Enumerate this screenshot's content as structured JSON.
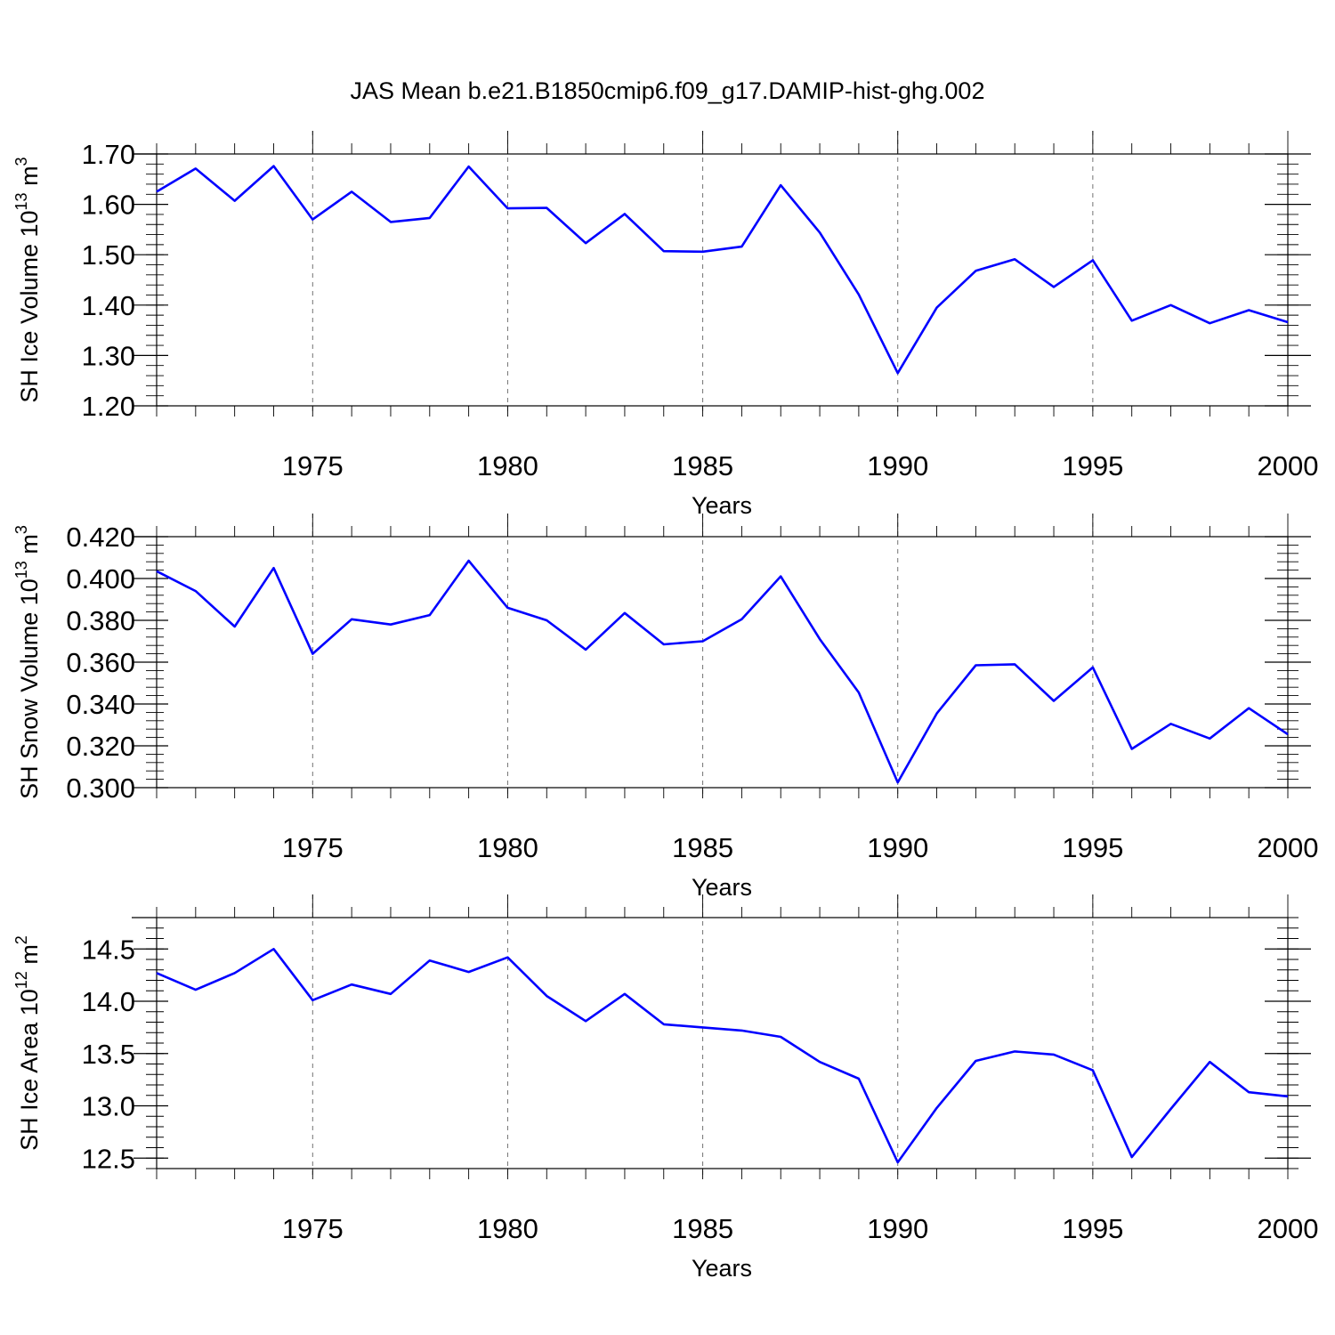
{
  "chart_data": {
    "type": "line",
    "title": "JAS Mean b.e21.B1850cmip6.f09_g17.DAMIP-hist-ghg.002",
    "line_color": "#0000ff",
    "panels": [
      {
        "ylabel": {
          "main": "SH Ice Volume 10",
          "exp": "13",
          "unit": " m",
          "unit_exp": "3"
        },
        "xlabel": "Years",
        "xlim": [
          1971,
          2000
        ],
        "ylim": [
          1.2,
          1.7
        ],
        "yticks": [
          "1.20",
          "1.30",
          "1.40",
          "1.50",
          "1.60",
          "1.70"
        ],
        "xticks": [
          "1975",
          "1980",
          "1985",
          "1990",
          "1995",
          "2000"
        ],
        "x": [
          1971,
          1972,
          1973,
          1974,
          1975,
          1976,
          1977,
          1978,
          1979,
          1980,
          1981,
          1982,
          1983,
          1984,
          1985,
          1986,
          1987,
          1988,
          1989,
          1990,
          1991,
          1992,
          1993,
          1994,
          1995,
          1996,
          1997,
          1998,
          1999,
          2000
        ],
        "values": [
          1.625,
          1.671,
          1.607,
          1.676,
          1.57,
          1.625,
          1.565,
          1.573,
          1.675,
          1.592,
          1.593,
          1.523,
          1.581,
          1.507,
          1.506,
          1.516,
          1.638,
          1.544,
          1.421,
          1.265,
          1.395,
          1.468,
          1.491,
          1.436,
          1.489,
          1.369,
          1.4,
          1.364,
          1.39,
          1.366
        ]
      },
      {
        "ylabel": {
          "main": "SH Snow Volume 10",
          "exp": "13",
          "unit": " m",
          "unit_exp": "3"
        },
        "xlabel": "Years",
        "xlim": [
          1971,
          2000
        ],
        "ylim": [
          0.3,
          0.42
        ],
        "yticks": [
          "0.300",
          "0.320",
          "0.340",
          "0.360",
          "0.380",
          "0.400",
          "0.420"
        ],
        "xticks": [
          "1975",
          "1980",
          "1985",
          "1990",
          "1995",
          "2000"
        ],
        "x": [
          1971,
          1972,
          1973,
          1974,
          1975,
          1976,
          1977,
          1978,
          1979,
          1980,
          1981,
          1982,
          1983,
          1984,
          1985,
          1986,
          1987,
          1988,
          1989,
          1990,
          1991,
          1992,
          1993,
          1994,
          1995,
          1996,
          1997,
          1998,
          1999,
          2000
        ],
        "values": [
          0.4035,
          0.394,
          0.377,
          0.405,
          0.364,
          0.3805,
          0.378,
          0.3825,
          0.4085,
          0.386,
          0.38,
          0.366,
          0.3835,
          0.3685,
          0.37,
          0.3805,
          0.401,
          0.371,
          0.3455,
          0.3025,
          0.3355,
          0.3585,
          0.359,
          0.3415,
          0.3575,
          0.3185,
          0.3305,
          0.3235,
          0.338,
          0.3255
        ]
      },
      {
        "ylabel": {
          "main": "SH Ice Area 10",
          "exp": "12",
          "unit": " m",
          "unit_exp": "2"
        },
        "xlabel": "Years",
        "xlim": [
          1971,
          2000
        ],
        "ylim": [
          12.4,
          14.8
        ],
        "yticks": [
          "12.5",
          "13.0",
          "13.5",
          "14.0",
          "14.5"
        ],
        "xticks": [
          "1975",
          "1980",
          "1985",
          "1990",
          "1995",
          "2000"
        ],
        "x": [
          1971,
          1972,
          1973,
          1974,
          1975,
          1976,
          1977,
          1978,
          1979,
          1980,
          1981,
          1982,
          1983,
          1984,
          1985,
          1986,
          1987,
          1988,
          1989,
          1990,
          1991,
          1992,
          1993,
          1994,
          1995,
          1996,
          1997,
          1998,
          1999,
          2000
        ],
        "values": [
          14.27,
          14.11,
          14.27,
          14.5,
          14.01,
          14.16,
          14.07,
          14.39,
          14.28,
          14.42,
          14.05,
          13.81,
          14.07,
          13.78,
          13.75,
          13.72,
          13.66,
          13.42,
          13.26,
          12.46,
          12.98,
          13.43,
          13.52,
          13.49,
          13.34,
          12.51,
          12.97,
          13.42,
          13.13,
          13.09
        ]
      }
    ]
  }
}
